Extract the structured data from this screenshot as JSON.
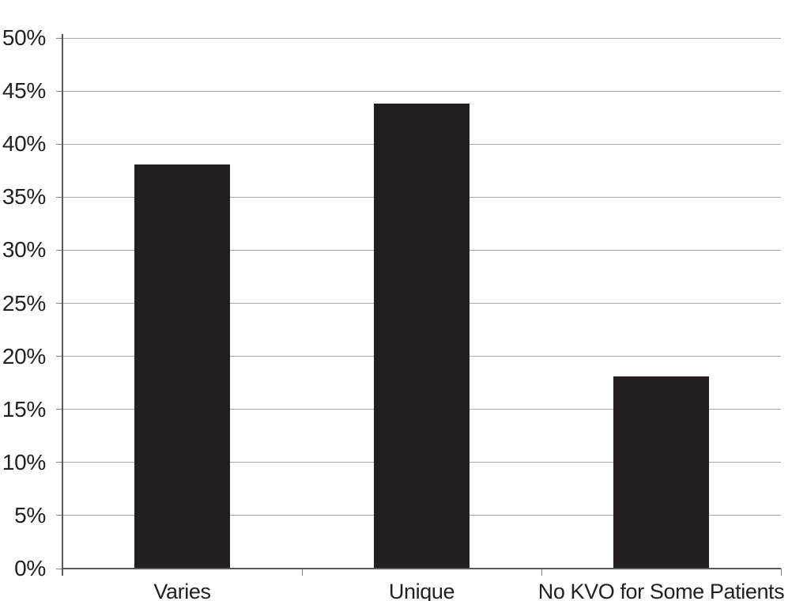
{
  "chart_data": {
    "type": "bar",
    "title": "",
    "xlabel": "",
    "ylabel": "",
    "categories": [
      "Varies",
      "Unique",
      "No KVO for Some Patients"
    ],
    "values": [
      38.1,
      43.8,
      18.1
    ],
    "ylim": [
      0,
      50
    ],
    "ytick_step": 5,
    "ytick_labels": [
      "0%",
      "5%",
      "10%",
      "15%",
      "20%",
      "25%",
      "30%",
      "35%",
      "40%",
      "45%",
      "50%"
    ],
    "grid": true,
    "legend": "none",
    "colors": {
      "bar": "#231f20",
      "gridline": "#a6a6a6",
      "axis": "#595959",
      "tick": "#7f7f7f",
      "text": "#212121",
      "background": "#ffffff"
    }
  }
}
